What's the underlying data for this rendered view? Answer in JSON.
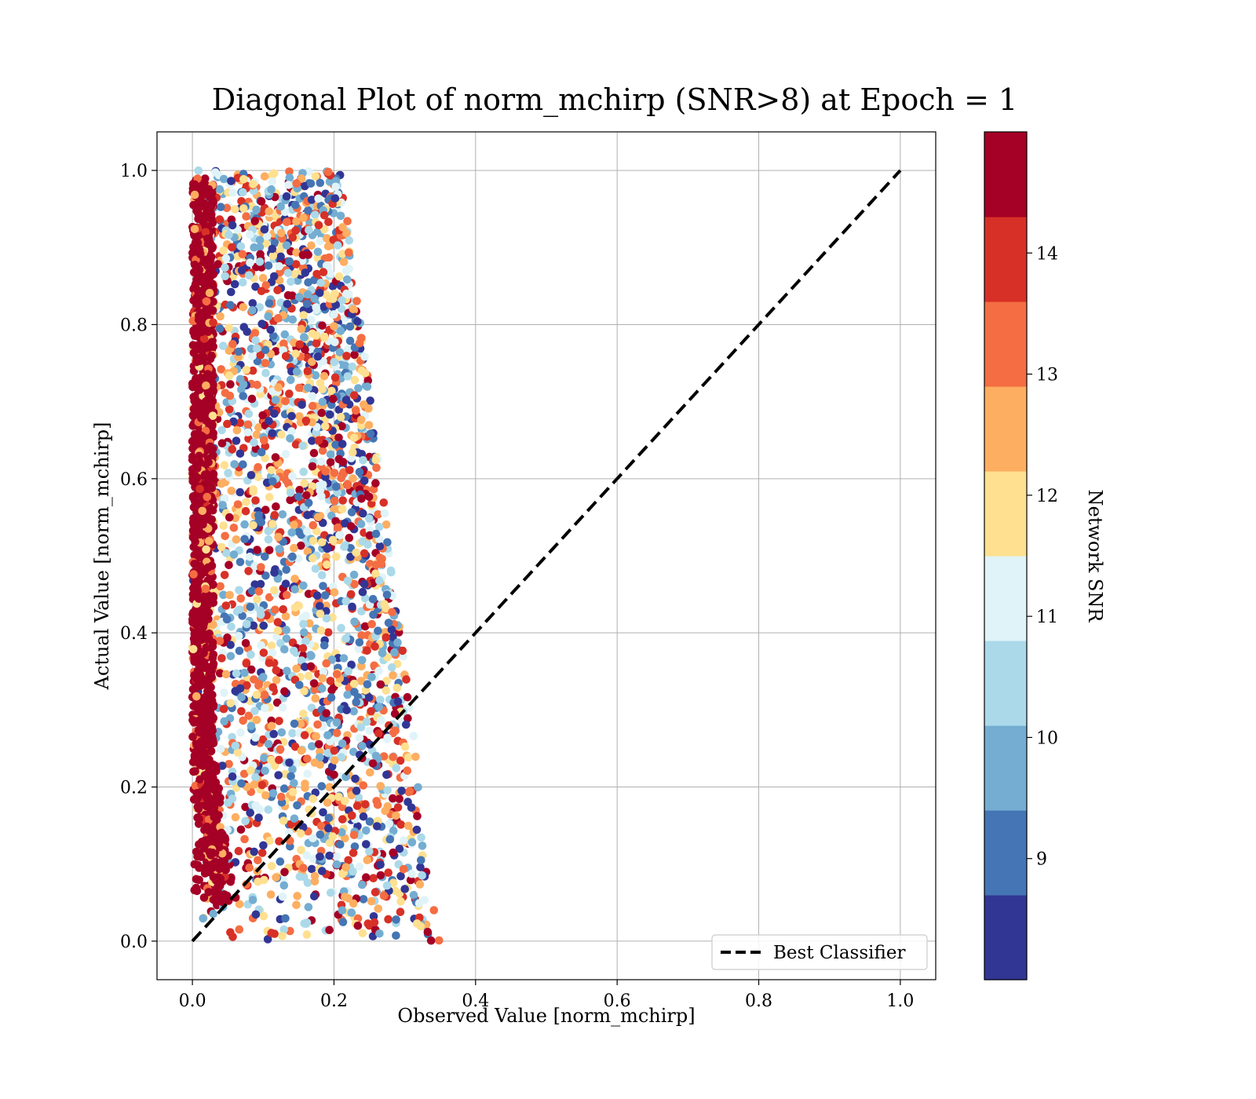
{
  "chart_data": {
    "type": "scatter",
    "title": "Diagonal Plot of norm_mchirp (SNR>8) at Epoch = 1",
    "xlabel": "Observed Value [norm_mchirp]",
    "ylabel": "Actual Value [norm_mchirp]",
    "xlim": [
      -0.05,
      1.05
    ],
    "ylim": [
      -0.05,
      1.05
    ],
    "x_ticks": [
      "0.0",
      "0.2",
      "0.4",
      "0.6",
      "0.8",
      "1.0"
    ],
    "y_ticks": [
      "0.0",
      "0.2",
      "0.4",
      "0.6",
      "0.8",
      "1.0"
    ],
    "grid": true,
    "reference_line": {
      "label": "Best Classifier",
      "x": [
        0.0,
        1.0
      ],
      "y": [
        0.0,
        1.0
      ],
      "style": "dashed",
      "color": "#000000"
    },
    "legend": {
      "position": "lower-right",
      "entries": [
        "Best Classifier"
      ]
    },
    "colorbar": {
      "label": "Network SNR",
      "colormap": "RdYlBu_r",
      "range": [
        8.0,
        15.0
      ],
      "ticks": [
        "9",
        "10",
        "11",
        "12",
        "13",
        "14"
      ],
      "bins": [
        {
          "from": 8.0,
          "to": 8.7,
          "color": "#313695"
        },
        {
          "from": 8.7,
          "to": 9.4,
          "color": "#4575b4"
        },
        {
          "from": 9.4,
          "to": 10.1,
          "color": "#74add1"
        },
        {
          "from": 10.1,
          "to": 10.8,
          "color": "#abd9e9"
        },
        {
          "from": 10.8,
          "to": 11.5,
          "color": "#e0f3f8"
        },
        {
          "from": 11.5,
          "to": 12.2,
          "color": "#fee090"
        },
        {
          "from": 12.2,
          "to": 12.9,
          "color": "#fdae61"
        },
        {
          "from": 12.9,
          "to": 13.6,
          "color": "#f46d43"
        },
        {
          "from": 13.6,
          "to": 14.3,
          "color": "#d73027"
        },
        {
          "from": 14.3,
          "to": 15.0,
          "color": "#a50026"
        }
      ]
    },
    "scatter_distribution": {
      "observed_range": [
        0.0,
        0.35
      ],
      "actual_range": [
        0.0,
        1.0
      ],
      "dense_column_observed_range": [
        0.0,
        0.03
      ],
      "dense_column_snr": 14.5
    }
  }
}
